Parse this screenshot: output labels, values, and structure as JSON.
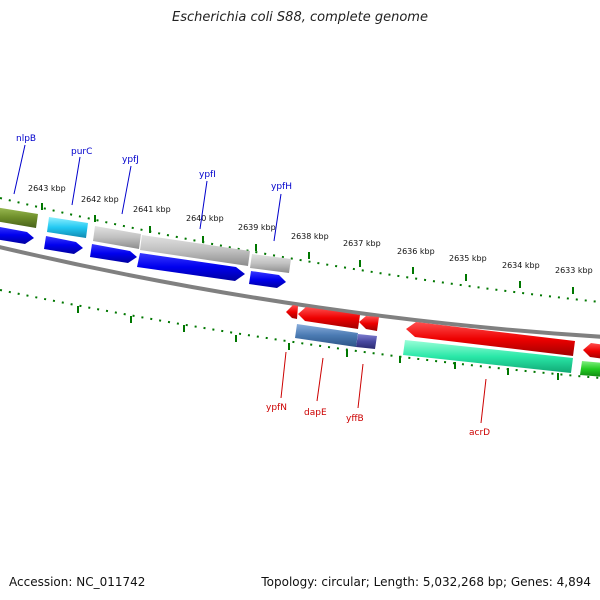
{
  "title": "Escherichia coli S88, complete genome",
  "footer": {
    "accession": "Accession: NC_011742",
    "summary": "Topology: circular; Length: 5,032,268 bp; Genes: 4,894"
  },
  "kbp_labels": [
    "2643 kbp",
    "2642 kbp",
    "2641 kbp",
    "2640 kbp",
    "2639 kbp",
    "2638 kbp",
    "2637 kbp",
    "2636 kbp",
    "2635 kbp",
    "2634 kbp",
    "2633 kbp"
  ],
  "forward_genes": [
    "nlpB",
    "purC",
    "ypfJ",
    "ypfI",
    "ypfH"
  ],
  "reverse_genes": [
    "ypfN",
    "dapE",
    "yffB",
    "acrD"
  ],
  "colors": {
    "forward_label": "#0000cc",
    "reverse_label": "#cc0000",
    "forward_cds": "#0000ee",
    "reverse_cds": "#ee0000",
    "tick": "#007700",
    "backbone": "#808080"
  }
}
